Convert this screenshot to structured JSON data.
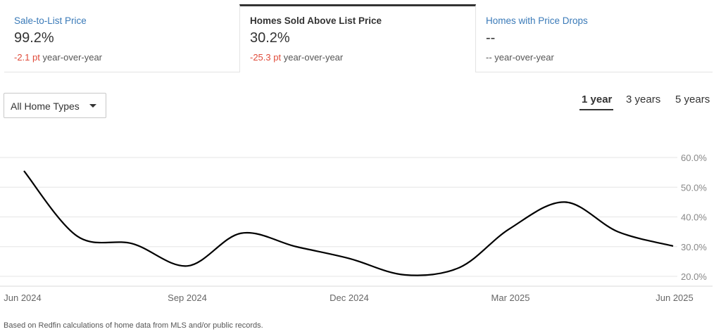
{
  "tabs": [
    {
      "title": "Sale-to-List Price",
      "value": "99.2%",
      "change": "-2.1 pt",
      "change_suffix": "year-over-year"
    },
    {
      "title": "Homes Sold Above List Price",
      "value": "30.2%",
      "change": "-25.3 pt",
      "change_suffix": "year-over-year"
    },
    {
      "title": "Homes with Price Drops",
      "value": "--",
      "change": "--",
      "change_suffix": "year-over-year"
    }
  ],
  "filter": {
    "selected": "All Home Types"
  },
  "ranges": {
    "one_year": "1 year",
    "three_years": "3 years",
    "five_years": "5 years",
    "active": "1 year"
  },
  "colors": {
    "link": "#3a7ab8",
    "negative": "#e04b3a",
    "line": "#000000",
    "grid": "#e5e5e5"
  },
  "chart_data": {
    "type": "line",
    "x_ticks": [
      "Jun 2024",
      "Sep 2024",
      "Dec 2024",
      "Mar 2025",
      "Jun 2025"
    ],
    "y_ticks": [
      "20.0%",
      "30.0%",
      "40.0%",
      "50.0%",
      "60.0%"
    ],
    "ylim": [
      20,
      60
    ],
    "y_position": "right",
    "grid": true,
    "series": [
      {
        "x": [
          "2024-06-01",
          "2024-07-01",
          "2024-08-01",
          "2024-09-01",
          "2024-10-01",
          "2024-11-01",
          "2024-12-01",
          "2025-01-01",
          "2025-02-01",
          "2025-03-01",
          "2025-04-01",
          "2025-05-01",
          "2025-06-01"
        ],
        "values": [
          55.5,
          33.5,
          31.0,
          23.5,
          34.5,
          30.0,
          26.0,
          20.5,
          23.0,
          36.0,
          45.0,
          35.0,
          30.2
        ]
      }
    ]
  },
  "footnote": "Based on Redfin calculations of home data from MLS and/or public records."
}
